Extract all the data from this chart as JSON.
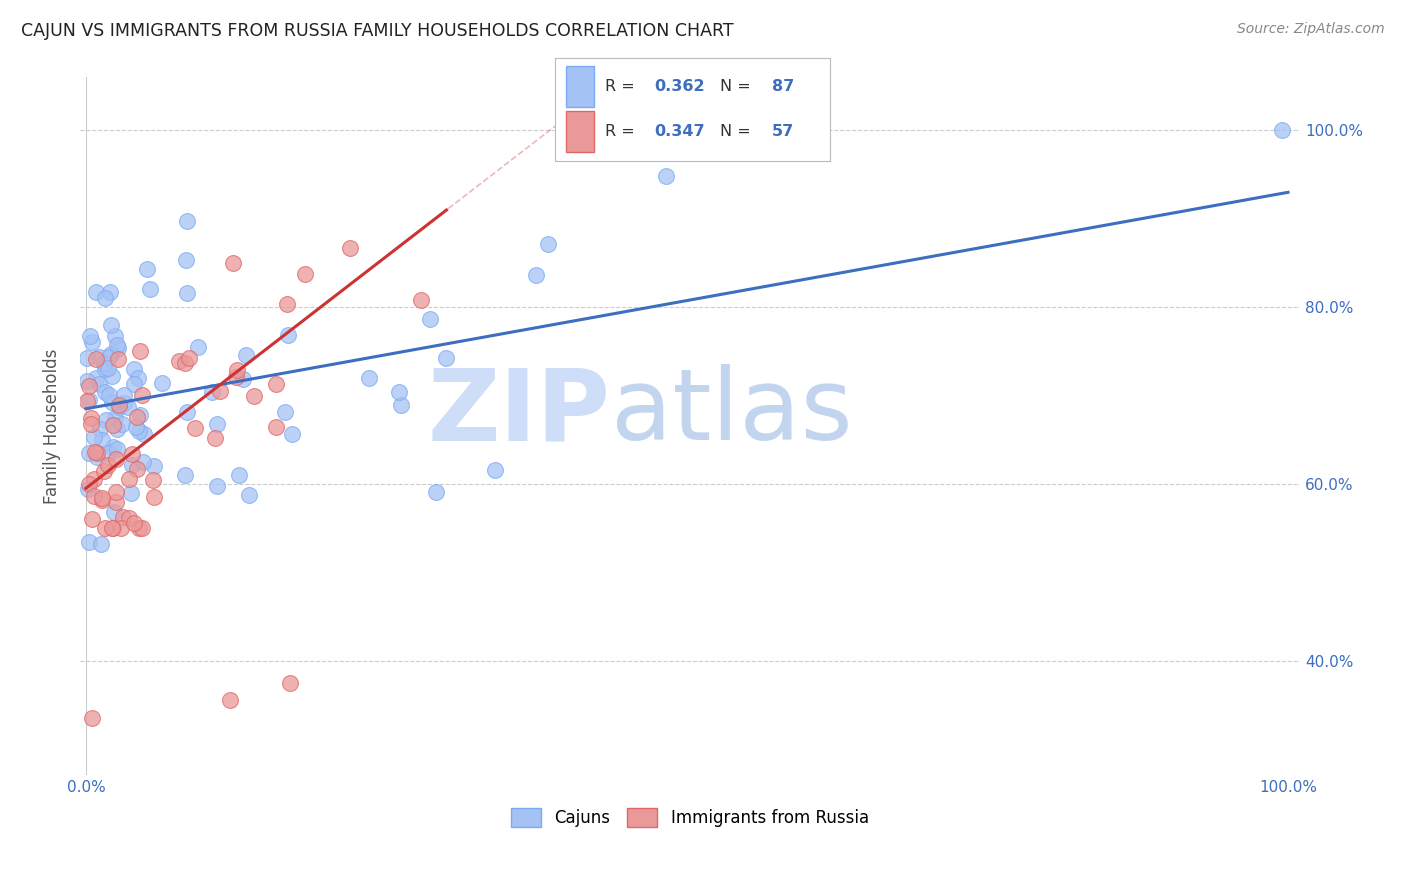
{
  "title": "CAJUN VS IMMIGRANTS FROM RUSSIA FAMILY HOUSEHOLDS CORRELATION CHART",
  "source": "Source: ZipAtlas.com",
  "ylabel": "Family Households",
  "blue_color": "#a4c2f4",
  "pink_color": "#ea9999",
  "blue_line_color": "#3d6ebf",
  "pink_line_color": "#cc3333",
  "blue_dot_edge": "#7baaf7",
  "pink_dot_edge": "#e06666",
  "watermark_zip_color": "#c9daf8",
  "watermark_atlas_color": "#aac4e8",
  "legend_label_color": "#3d6ebf",
  "legend_text_color": "#333333",
  "tick_color": "#3d6ebf",
  "grid_color": "#cccccc",
  "ylabel_color": "#555555",
  "title_color": "#222222",
  "source_color": "#888888",
  "xlim_min": -0.005,
  "xlim_max": 1.01,
  "ylim_min": 0.27,
  "ylim_max": 1.06,
  "yticks": [
    0.4,
    0.6,
    0.8,
    1.0
  ],
  "ytick_labels": [
    "40.0%",
    "60.0%",
    "80.0%",
    "100.0%"
  ],
  "xtick_labels_shown": [
    "0.0%",
    "100.0%"
  ],
  "blue_intercept": 0.685,
  "blue_slope": 0.245,
  "pink_intercept": 0.595,
  "pink_slope": 1.05,
  "legend_R_blue": "0.362",
  "legend_N_blue": "87",
  "legend_R_pink": "0.347",
  "legend_N_pink": "57"
}
